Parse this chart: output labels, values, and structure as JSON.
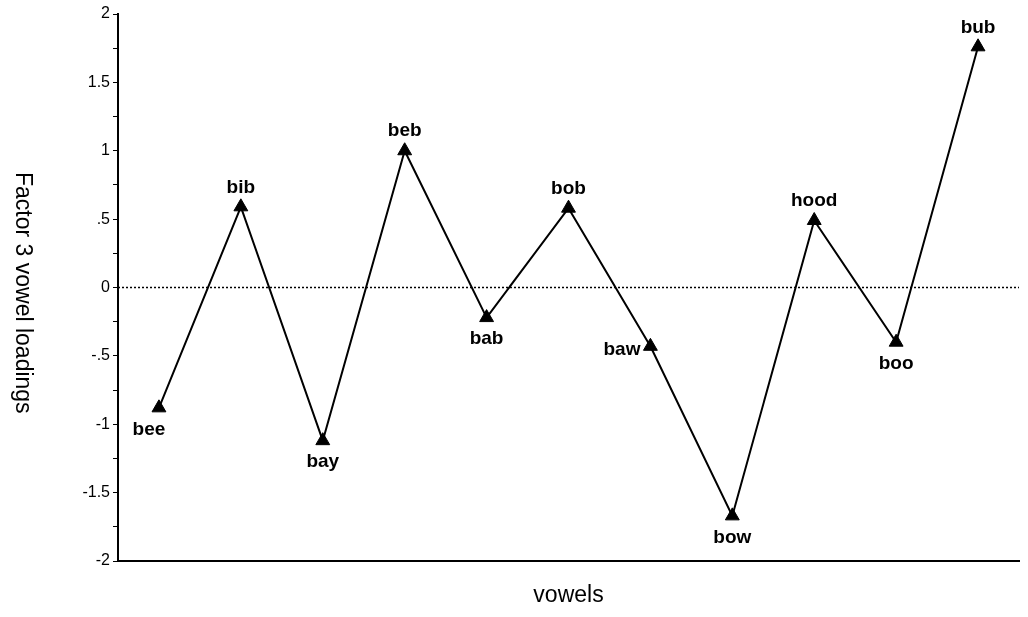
{
  "chart_data": {
    "type": "line",
    "xlabel": "vowels",
    "ylabel": "Factor 3 vowel loadings",
    "categories": [
      "bee",
      "bib",
      "bay",
      "beb",
      "bab",
      "bob",
      "baw",
      "bow",
      "hood",
      "boo",
      "bub"
    ],
    "series": [
      {
        "color": "#000000",
        "values": [
          -0.88,
          0.59,
          -1.12,
          1.0,
          -0.22,
          0.58,
          -0.43,
          -1.67,
          0.49,
          -0.4,
          1.76
        ]
      }
    ],
    "ylim": [
      -2,
      2
    ],
    "yticks": [
      -2,
      {
        "value": -1.75,
        "label": null
      },
      -1.5,
      {
        "value": -1.25,
        "label": null
      },
      -1,
      {
        "value": -0.75,
        "label": null
      },
      {
        "value": -0.5,
        "label": "-.5"
      },
      {
        "value": -0.25,
        "label": null
      },
      0,
      {
        "value": 0.25,
        "label": null
      },
      {
        "value": 0.5,
        "label": ".5"
      },
      {
        "value": 0.75,
        "label": null
      },
      1,
      {
        "value": 1.25,
        "label": null
      },
      1.5,
      {
        "value": 1.75,
        "label": null
      },
      2
    ],
    "ref_lines": [
      {
        "axis": "y",
        "value": 0,
        "color": "#000000",
        "line_style": "dotted"
      }
    ],
    "grid": false,
    "legend": false,
    "tick_labels": "y",
    "marker": "triangle",
    "line_style": "solid"
  }
}
